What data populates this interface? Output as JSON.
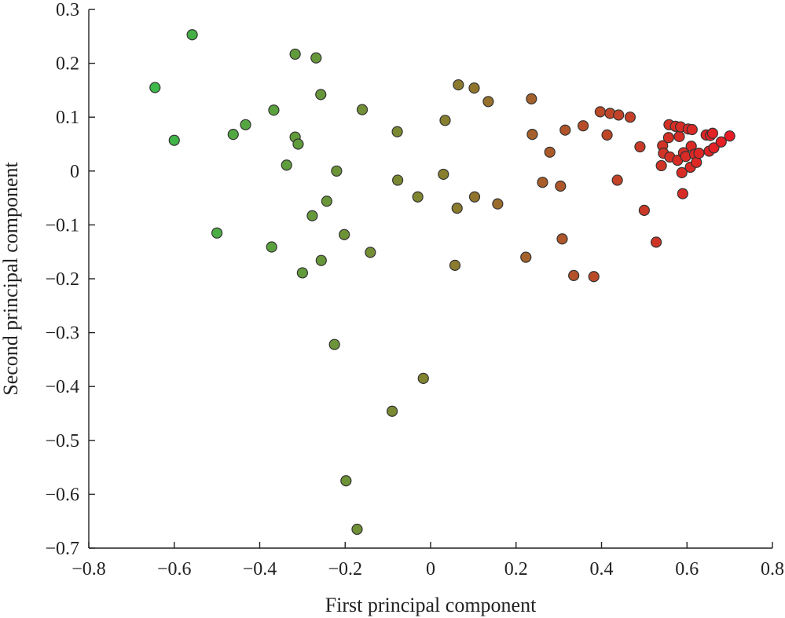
{
  "chart_data": {
    "type": "scatter",
    "title": "",
    "xlabel": "First principal component",
    "ylabel": "Second principal component",
    "xlim": [
      -0.8,
      0.8
    ],
    "ylim": [
      -0.7,
      0.3
    ],
    "grid": false,
    "legend": "none",
    "color_scale": {
      "low": "#3cb84a",
      "mid": "#86802e",
      "high": "#e81c24"
    },
    "xticks": [
      {
        "value": -0.8,
        "label": "−0.8"
      },
      {
        "value": -0.6,
        "label": "−0.6"
      },
      {
        "value": -0.4,
        "label": "−0.4"
      },
      {
        "value": -0.2,
        "label": "−0.2"
      },
      {
        "value": 0,
        "label": "0"
      },
      {
        "value": 0.2,
        "label": "0.2"
      },
      {
        "value": 0.4,
        "label": "0.4"
      },
      {
        "value": 0.6,
        "label": "0.6"
      },
      {
        "value": 0.8,
        "label": "0.8"
      }
    ],
    "yticks": [
      {
        "value": 0.3,
        "label": "0.3"
      },
      {
        "value": 0.2,
        "label": "0.2"
      },
      {
        "value": 0.1,
        "label": "0.1"
      },
      {
        "value": 0,
        "label": "0"
      },
      {
        "value": -0.1,
        "label": "−0.1"
      },
      {
        "value": -0.2,
        "label": "−0.2"
      },
      {
        "value": -0.3,
        "label": "−0.3"
      },
      {
        "value": -0.4,
        "label": "−0.4"
      },
      {
        "value": -0.5,
        "label": "−0.5"
      },
      {
        "value": -0.6,
        "label": "−0.6"
      },
      {
        "value": -0.7,
        "label": "−0.7"
      }
    ],
    "points": [
      {
        "x": -0.645,
        "y": 0.155
      },
      {
        "x": -0.6,
        "y": 0.057
      },
      {
        "x": -0.558,
        "y": 0.253
      },
      {
        "x": -0.5,
        "y": -0.115
      },
      {
        "x": -0.462,
        "y": 0.068
      },
      {
        "x": -0.433,
        "y": 0.086
      },
      {
        "x": -0.372,
        "y": -0.141
      },
      {
        "x": -0.367,
        "y": 0.113
      },
      {
        "x": -0.337,
        "y": 0.011
      },
      {
        "x": -0.317,
        "y": 0.217
      },
      {
        "x": -0.317,
        "y": 0.063
      },
      {
        "x": -0.31,
        "y": 0.05
      },
      {
        "x": -0.3,
        "y": -0.189
      },
      {
        "x": -0.277,
        "y": -0.083
      },
      {
        "x": -0.268,
        "y": 0.21
      },
      {
        "x": -0.257,
        "y": 0.142
      },
      {
        "x": -0.256,
        "y": -0.166
      },
      {
        "x": -0.243,
        "y": -0.056
      },
      {
        "x": -0.225,
        "y": -0.322
      },
      {
        "x": -0.22,
        "y": 0.0
      },
      {
        "x": -0.202,
        "y": -0.118
      },
      {
        "x": -0.198,
        "y": -0.575
      },
      {
        "x": -0.172,
        "y": -0.665
      },
      {
        "x": -0.16,
        "y": 0.114
      },
      {
        "x": -0.141,
        "y": -0.151
      },
      {
        "x": -0.09,
        "y": -0.446
      },
      {
        "x": -0.078,
        "y": 0.073
      },
      {
        "x": -0.077,
        "y": -0.017
      },
      {
        "x": -0.03,
        "y": -0.048
      },
      {
        "x": -0.017,
        "y": -0.385
      },
      {
        "x": 0.03,
        "y": -0.006
      },
      {
        "x": 0.034,
        "y": 0.094
      },
      {
        "x": 0.057,
        "y": -0.175
      },
      {
        "x": 0.062,
        "y": -0.069
      },
      {
        "x": 0.065,
        "y": 0.16
      },
      {
        "x": 0.102,
        "y": 0.154
      },
      {
        "x": 0.103,
        "y": -0.048
      },
      {
        "x": 0.135,
        "y": 0.129
      },
      {
        "x": 0.157,
        "y": -0.061
      },
      {
        "x": 0.223,
        "y": -0.16
      },
      {
        "x": 0.236,
        "y": 0.134
      },
      {
        "x": 0.238,
        "y": 0.068
      },
      {
        "x": 0.262,
        "y": -0.021
      },
      {
        "x": 0.279,
        "y": 0.035
      },
      {
        "x": 0.304,
        "y": -0.028
      },
      {
        "x": 0.308,
        "y": -0.126
      },
      {
        "x": 0.315,
        "y": 0.076
      },
      {
        "x": 0.335,
        "y": -0.194
      },
      {
        "x": 0.357,
        "y": 0.084
      },
      {
        "x": 0.382,
        "y": -0.196
      },
      {
        "x": 0.397,
        "y": 0.11
      },
      {
        "x": 0.413,
        "y": 0.067
      },
      {
        "x": 0.42,
        "y": 0.107
      },
      {
        "x": 0.437,
        "y": -0.017
      },
      {
        "x": 0.44,
        "y": 0.104
      },
      {
        "x": 0.467,
        "y": 0.1
      },
      {
        "x": 0.49,
        "y": 0.045
      },
      {
        "x": 0.5,
        "y": -0.073
      },
      {
        "x": 0.528,
        "y": -0.132
      },
      {
        "x": 0.54,
        "y": 0.01
      },
      {
        "x": 0.543,
        "y": 0.047
      },
      {
        "x": 0.545,
        "y": 0.033
      },
      {
        "x": 0.557,
        "y": 0.062
      },
      {
        "x": 0.558,
        "y": 0.086
      },
      {
        "x": 0.56,
        "y": 0.026
      },
      {
        "x": 0.573,
        "y": 0.083
      },
      {
        "x": 0.578,
        "y": 0.02
      },
      {
        "x": 0.582,
        "y": 0.064
      },
      {
        "x": 0.585,
        "y": 0.082
      },
      {
        "x": 0.588,
        "y": -0.003
      },
      {
        "x": 0.59,
        "y": -0.042
      },
      {
        "x": 0.592,
        "y": 0.034
      },
      {
        "x": 0.597,
        "y": 0.027
      },
      {
        "x": 0.603,
        "y": 0.078
      },
      {
        "x": 0.608,
        "y": 0.007
      },
      {
        "x": 0.61,
        "y": 0.046
      },
      {
        "x": 0.612,
        "y": 0.077
      },
      {
        "x": 0.618,
        "y": 0.031
      },
      {
        "x": 0.622,
        "y": 0.016
      },
      {
        "x": 0.628,
        "y": 0.033
      },
      {
        "x": 0.645,
        "y": 0.067
      },
      {
        "x": 0.652,
        "y": 0.037
      },
      {
        "x": 0.655,
        "y": 0.066
      },
      {
        "x": 0.66,
        "y": 0.07
      },
      {
        "x": 0.663,
        "y": 0.043
      },
      {
        "x": 0.68,
        "y": 0.054
      },
      {
        "x": 0.7,
        "y": 0.065
      }
    ]
  }
}
